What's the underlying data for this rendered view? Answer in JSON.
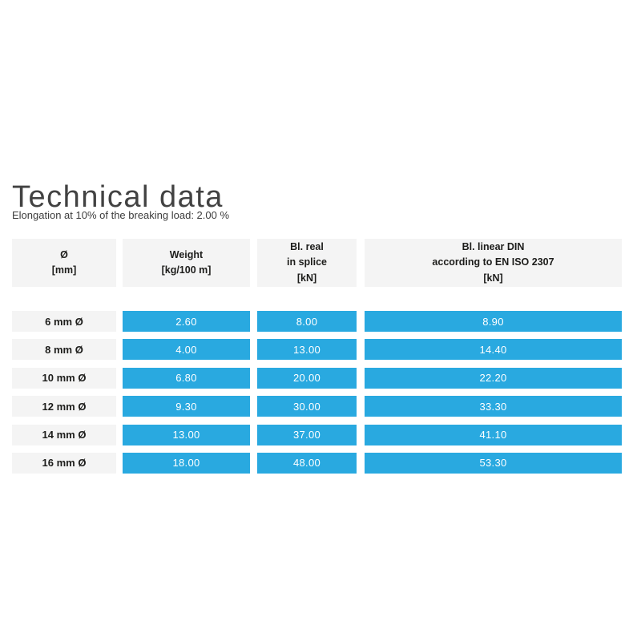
{
  "page": {
    "title": "Technical data",
    "subtitle": "Elongation at 10% of the breaking load: 2.00 %"
  },
  "colors": {
    "accent_blue": "#29a9e0",
    "cell_gray": "#f4f4f4",
    "text_dark": "#1d1d1b",
    "value_text": "#ffffff"
  },
  "table": {
    "headers": {
      "diameter": "Ø\n[mm]",
      "weight": "Weight\n[kg/100 m]",
      "bl_real": "Bl. real\nin splice\n[kN]",
      "bl_linear": "Bl. linear DIN\naccording to EN ISO 2307\n[kN]"
    },
    "rows": [
      {
        "label": "6 mm Ø",
        "weight": "2.60",
        "bl_real": "8.00",
        "bl_linear": "8.90"
      },
      {
        "label": "8 mm Ø",
        "weight": "4.00",
        "bl_real": "13.00",
        "bl_linear": "14.40"
      },
      {
        "label": "10 mm Ø",
        "weight": "6.80",
        "bl_real": "20.00",
        "bl_linear": "22.20"
      },
      {
        "label": "12 mm Ø",
        "weight": "9.30",
        "bl_real": "30.00",
        "bl_linear": "33.30"
      },
      {
        "label": "14 mm Ø",
        "weight": "13.00",
        "bl_real": "37.00",
        "bl_linear": "41.10"
      },
      {
        "label": "16 mm Ø",
        "weight": "18.00",
        "bl_real": "48.00",
        "bl_linear": "53.30"
      }
    ]
  }
}
